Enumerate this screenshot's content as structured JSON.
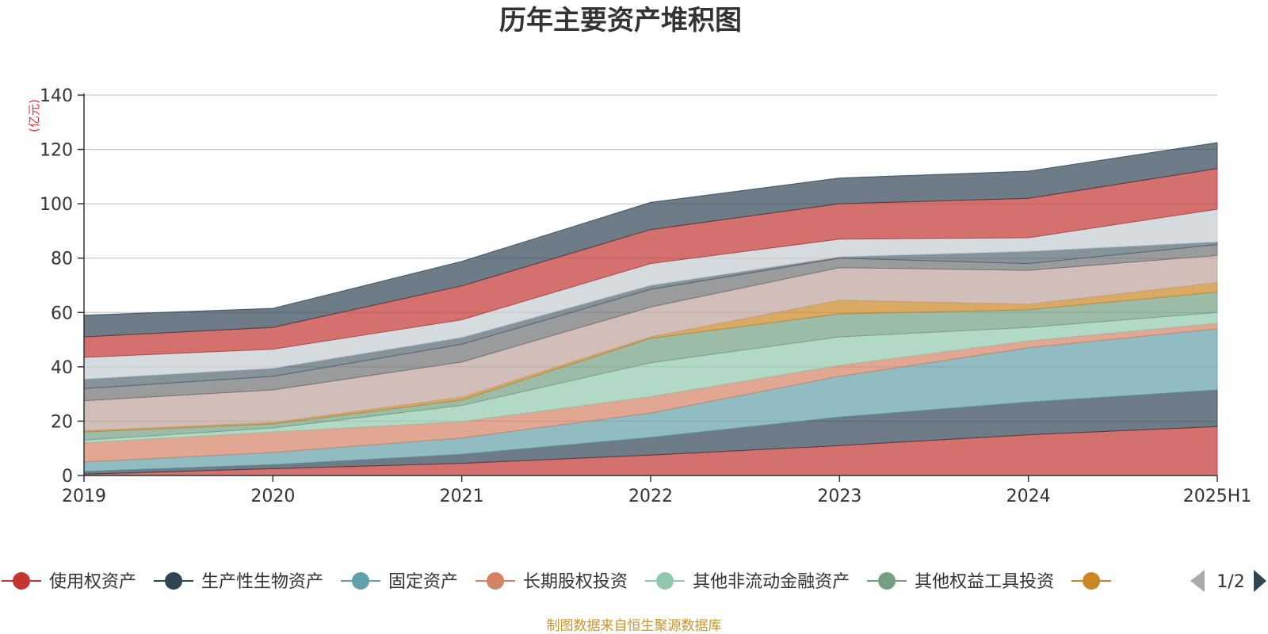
{
  "title": "历年主要资产堆积图",
  "unit_label": "(亿元)",
  "source_note": "制图数据来自恒生聚源数据库",
  "legend": {
    "page_indicator": "1/2",
    "visible_items": [
      {
        "name": "使用权资产",
        "color": "#c23531"
      },
      {
        "name": "生产性生物资产",
        "color": "#2f4554"
      },
      {
        "name": "固定资产",
        "color": "#61a0a8"
      },
      {
        "name": "长期股权投资",
        "color": "#d48265"
      },
      {
        "name": "其他非流动金融资产",
        "color": "#91c7ae"
      },
      {
        "name": "其他权益工具投资",
        "color": "#749f83"
      },
      {
        "name": "",
        "color": "#ca8622"
      }
    ],
    "prev_icon": "triangle-left-icon",
    "next_icon": "triangle-right-icon"
  },
  "chart_data": {
    "type": "area",
    "stacked": true,
    "title": "历年主要资产堆积图",
    "categories": [
      "2019",
      "2020",
      "2021",
      "2022",
      "2023",
      "2024",
      "2025H1"
    ],
    "ylim": [
      0,
      140
    ],
    "yticks": [
      0,
      20,
      40,
      60,
      80,
      100,
      120,
      140
    ],
    "ylabel": "(亿元)",
    "grid": true,
    "legend_position": "bottom",
    "series": [
      {
        "name": "使用权资产",
        "color": "#c23531",
        "values": [
          0.5,
          2.5,
          4.5,
          7.5,
          11,
          15,
          18
        ]
      },
      {
        "name": "生产性生物资产",
        "color": "#2f4554",
        "values": [
          1,
          1.5,
          3.3,
          6.5,
          10.5,
          12,
          13.5
        ]
      },
      {
        "name": "固定资产",
        "color": "#61a0a8",
        "values": [
          3.5,
          4.5,
          6,
          9,
          15,
          20,
          22.5
        ]
      },
      {
        "name": "长期股权投资",
        "color": "#d48265",
        "values": [
          7,
          7.5,
          6,
          6,
          4,
          2.5,
          2
        ]
      },
      {
        "name": "其他非流动金融资产",
        "color": "#91c7ae",
        "values": [
          1,
          1.5,
          6,
          12.5,
          10.5,
          5,
          4
        ]
      },
      {
        "name": "其他权益工具投资",
        "color": "#749f83",
        "values": [
          3,
          1.5,
          2,
          9,
          8.5,
          6.5,
          7.5
        ]
      },
      {
        "name": "",
        "color": "#ca8622",
        "values": [
          0.5,
          0.5,
          1,
          0.5,
          5,
          2,
          3.5
        ]
      },
      {
        "color": "#bda29a",
        "values": [
          11,
          12,
          13,
          11,
          12,
          12.5,
          10
        ]
      },
      {
        "color": "#6e7074",
        "values": [
          4.5,
          5,
          6.5,
          6.5,
          3.5,
          2.5,
          4
        ]
      },
      {
        "color": "#546570",
        "values": [
          3.5,
          3,
          2.5,
          1.5,
          0.5,
          4.5,
          1
        ]
      },
      {
        "color": "#c4ccd3",
        "values": [
          8,
          7,
          6.5,
          8,
          6.5,
          5,
          12
        ]
      },
      {
        "color": "#c23531",
        "values": [
          7.5,
          8,
          12.5,
          12.5,
          13,
          14.5,
          15
        ]
      },
      {
        "color": "#2f4554",
        "values": [
          8,
          7,
          9,
          10,
          9.5,
          10,
          9.5
        ]
      }
    ]
  }
}
